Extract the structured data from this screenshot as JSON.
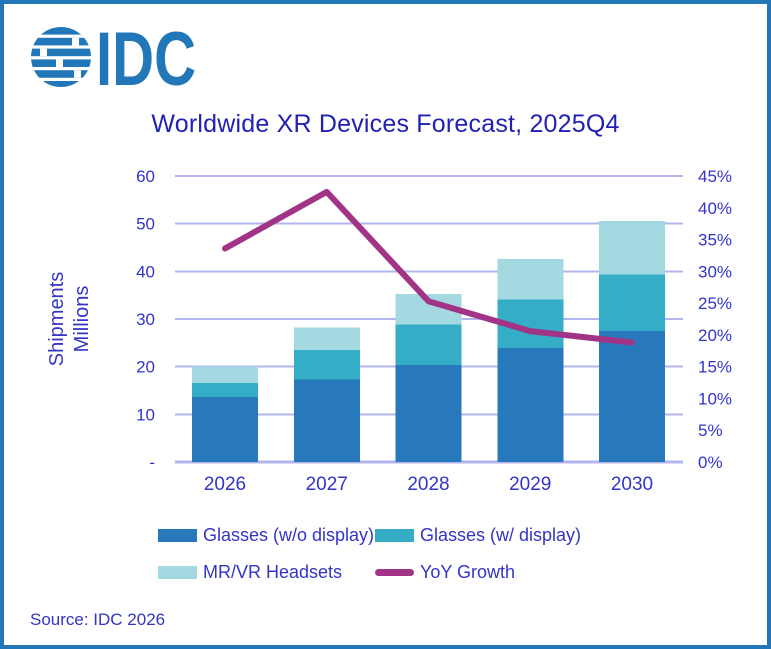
{
  "logo": {
    "text": "IDC"
  },
  "header": {
    "title": "Worldwide XR Devices Forecast, 2025Q4"
  },
  "footer": {
    "source": "Source: IDC 2026"
  },
  "colors": {
    "brand": "#2277B8",
    "bar_glasses_wo_display": "#2878BC",
    "bar_glasses_w_display": "#36ADC6",
    "bar_mrvr_headsets": "#A5D9E2",
    "yoy_line": "#A13486",
    "gridline": "#B3B6EE",
    "title_text": "#2121B4",
    "axis_text": "#3434C8"
  },
  "chart_data": {
    "type": "bar",
    "subtype": "stacked-bars-with-yoy-line",
    "title": "Worldwide XR Devices Forecast, 2025Q4",
    "categories": [
      "2026",
      "2027",
      "2028",
      "2029",
      "2030"
    ],
    "series": [
      {
        "name": "Glasses (w/o display)",
        "type": "bar",
        "axis": "left",
        "values": [
          13.6,
          17.3,
          20.4,
          23.9,
          27.5
        ]
      },
      {
        "name": "Glasses (w/ display)",
        "type": "bar",
        "axis": "left",
        "values": [
          3.0,
          6.2,
          8.4,
          10.2,
          11.8
        ]
      },
      {
        "name": "MR/VR Headsets",
        "type": "bar",
        "axis": "left",
        "values": [
          3.4,
          4.7,
          6.4,
          8.5,
          11.3
        ]
      },
      {
        "name": "YoY Growth",
        "type": "line",
        "axis": "right",
        "values": [
          33.6,
          42.5,
          25.3,
          20.6,
          18.8
        ]
      }
    ],
    "stacked_totals": [
      20.0,
      28.2,
      35.2,
      42.6,
      50.6
    ],
    "left_axis": {
      "label": "Shipments Millions",
      "label_lines": [
        "Shipments",
        "Millions"
      ],
      "min": 0,
      "max": 60,
      "tick_labels": [
        "60",
        "50",
        "40",
        "30",
        "20",
        "10",
        "-"
      ]
    },
    "right_axis": {
      "unit": "%",
      "min": 0,
      "max": 45,
      "tick_labels": [
        "45%",
        "40%",
        "35%",
        "30%",
        "25%",
        "20%",
        "15%",
        "10%",
        "5%",
        "0%"
      ]
    },
    "grid": "horizontal",
    "legend_position": "bottom"
  },
  "legend": {
    "items": [
      {
        "label": "Glasses (w/o display)",
        "swatch": "bar_glasses_wo_display",
        "kind": "rect"
      },
      {
        "label": "Glasses (w/ display)",
        "swatch": "bar_glasses_w_display",
        "kind": "rect"
      },
      {
        "label": "MR/VR Headsets",
        "swatch": "bar_mrvr_headsets",
        "kind": "rect"
      },
      {
        "label": "YoY Growth",
        "swatch": "yoy_line",
        "kind": "line"
      }
    ]
  }
}
